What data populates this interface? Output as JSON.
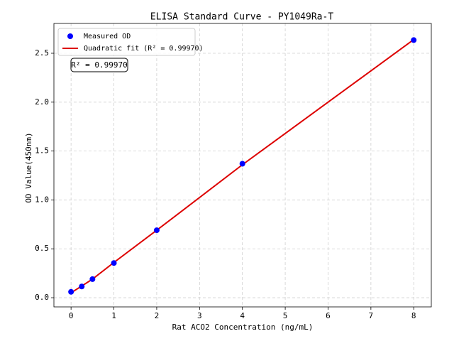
{
  "chart_data": {
    "type": "scatter",
    "title": "ELISA Standard Curve - PY1049Ra-T",
    "xlabel": "Rat ACO2 Concentration (ng/mL)",
    "ylabel": "OD Value(450nm)",
    "annotation": "R² = 0.99970",
    "xlim": [
      -0.4,
      8.41
    ],
    "ylim": [
      -0.094,
      2.805
    ],
    "xticks": [
      0,
      1,
      2,
      3,
      4,
      5,
      6,
      7,
      8
    ],
    "yticks": [
      {
        "value": 0,
        "label": "0.0"
      },
      0.5,
      {
        "value": 1,
        "label": "1.0"
      },
      1.5,
      {
        "value": 2,
        "label": "2.0"
      },
      2.5
    ],
    "grid": true,
    "legend": "upper left",
    "series": [
      {
        "name": "Measured OD",
        "type": "scatter",
        "color": "#0000ff",
        "x": [
          0,
          0.25,
          0.5,
          1,
          2,
          4,
          8
        ],
        "values": [
          0.06,
          0.115,
          0.19,
          0.355,
          0.69,
          1.37,
          2.635
        ]
      },
      {
        "name": "Quadratic fit (R² = 0.99970)",
        "type": "line",
        "color": "#dd0000",
        "x": [
          0,
          0.25,
          0.5,
          1,
          2,
          4,
          8
        ],
        "values": [
          0.05,
          0.12,
          0.19,
          0.36,
          0.69,
          1.36,
          2.64
        ]
      }
    ]
  }
}
